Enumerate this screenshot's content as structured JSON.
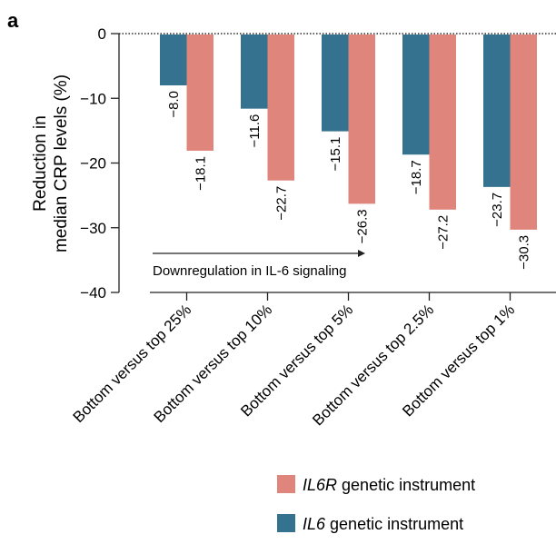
{
  "panel_label": "a",
  "chart_data": {
    "type": "bar",
    "categories": [
      "Bottom versus top 25%",
      "Bottom versus top 10%",
      "Bottom versus top 5%",
      "Bottom versus top 2.5%",
      "Bottom versus top 1%"
    ],
    "series": [
      {
        "name": "IL6 genetic instrument",
        "name_italic": "IL6",
        "name_rest": " genetic instrument",
        "color": "#35728f",
        "values": [
          -8.0,
          -11.6,
          -15.1,
          -18.7,
          -23.7
        ]
      },
      {
        "name": "IL6R genetic instrument",
        "name_italic": "IL6R",
        "name_rest": " genetic instrument",
        "color": "#e0857b",
        "values": [
          -18.1,
          -22.7,
          -26.3,
          -27.2,
          -30.3
        ]
      }
    ],
    "ylabel_line1": "Reduction in",
    "ylabel_line2": "median CRP levels (%)",
    "ylim": [
      -40,
      0
    ],
    "yticks": [
      0,
      -10,
      -20,
      -30,
      -40
    ],
    "ytick_labels": [
      "0",
      "−10",
      "−20",
      "−30",
      "−40"
    ],
    "data_labels": [
      [
        "−8.0",
        "−11.6",
        "−15.1",
        "−18.7",
        "−23.7"
      ],
      [
        "−18.1",
        "−22.7",
        "−26.3",
        "−27.2",
        "−30.3"
      ]
    ],
    "annotation": "Downregulation in IL-6 signaling",
    "legend_position": "bottom-right",
    "grid": false
  }
}
